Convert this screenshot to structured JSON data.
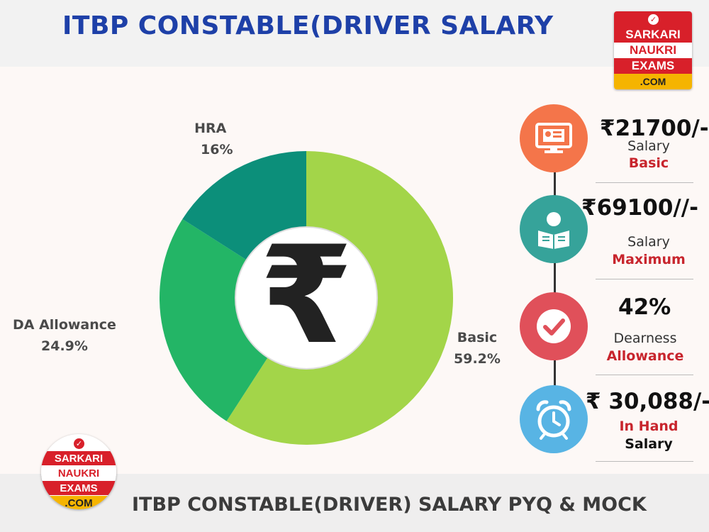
{
  "header": {
    "title": "ITBP CONSTABLE(DRIVER SALARY"
  },
  "footer": {
    "title": "ITBP CONSTABLE(DRIVER) SALARY  PYQ & MOCK"
  },
  "logo": {
    "line1": "SARKARI",
    "line2": "NAUKRI",
    "line3": "EXAMS",
    "line4": ".COM",
    "icon": "check-icon"
  },
  "center_symbol": "₹",
  "chart_data": {
    "type": "pie",
    "subtype": "donut",
    "categories": [
      "Basic",
      "DA Allowance",
      "HRA"
    ],
    "values": [
      59.2,
      24.9,
      16
    ],
    "value_labels": [
      "59.2%",
      "24.9%",
      "16%"
    ],
    "colors": [
      "#a3d549",
      "#23b566",
      "#0c8f7a"
    ],
    "legend": "none"
  },
  "timeline": [
    {
      "icon": "monitor-id-card-icon",
      "color": "#f4754a",
      "value": "₹21700/-",
      "line1": "Salary",
      "line2": "Basic"
    },
    {
      "icon": "reading-person-icon",
      "color": "#36a39a",
      "value": "₹69100//-",
      "line1": "Salary",
      "line2": "Maximum"
    },
    {
      "icon": "check-badge-icon",
      "color": "#e0505a",
      "value": "42%",
      "line1": "Dearness",
      "line2": "Allowance"
    },
    {
      "icon": "alarm-clock-icon",
      "color": "#58b4e4",
      "value": "₹ 30,088/-",
      "line1": "In Hand",
      "line2": "Salary"
    }
  ]
}
